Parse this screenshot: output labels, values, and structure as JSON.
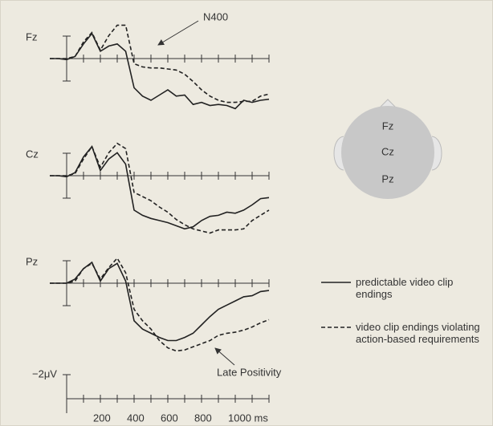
{
  "chart_data": [
    {
      "type": "line",
      "title": "Fz",
      "x": [
        -100,
        -50,
        0,
        50,
        100,
        150,
        200,
        250,
        300,
        350,
        400,
        450,
        500,
        550,
        600,
        650,
        700,
        750,
        800,
        850,
        900,
        950,
        1000,
        1050,
        1100,
        1150,
        1200
      ],
      "xlim": [
        -100,
        1200
      ],
      "ylim": [
        5.5,
        -3.5
      ],
      "series": [
        {
          "style": "solid",
          "color": "#222222",
          "values": [
            0,
            0,
            0.1,
            -0.2,
            -1.4,
            -2.4,
            -0.7,
            -1.2,
            -1.4,
            -0.7,
            2.8,
            3.6,
            4.0,
            3.5,
            3.0,
            3.6,
            3.5,
            4.4,
            4.2,
            4.5,
            4.4,
            4.5,
            4.8,
            4.0,
            4.2,
            4.0,
            3.9
          ]
        },
        {
          "style": "dashed",
          "color": "#222222",
          "values": [
            0,
            0,
            0,
            -0.2,
            -1.6,
            -2.5,
            -0.8,
            -2.2,
            -3.2,
            -3.2,
            0.5,
            0.8,
            0.9,
            0.9,
            1.0,
            1.1,
            1.5,
            2.2,
            3.0,
            3.6,
            4.0,
            4.2,
            4.2,
            4.1,
            4.1,
            3.6,
            3.4
          ]
        }
      ]
    },
    {
      "type": "line",
      "title": "Cz",
      "x": [
        -100,
        -50,
        0,
        50,
        100,
        150,
        200,
        250,
        300,
        350,
        400,
        450,
        500,
        550,
        600,
        650,
        700,
        750,
        800,
        850,
        900,
        950,
        1000,
        1050,
        1100,
        1150,
        1200
      ],
      "xlim": [
        -100,
        1200
      ],
      "ylim": [
        5.5,
        -3.5
      ],
      "series": [
        {
          "style": "solid",
          "color": "#222222",
          "values": [
            0,
            0,
            0.1,
            -0.3,
            -1.8,
            -2.8,
            -0.5,
            -1.6,
            -2.2,
            -1.1,
            3.3,
            3.8,
            4.1,
            4.3,
            4.5,
            4.8,
            5.1,
            4.9,
            4.3,
            3.9,
            3.8,
            3.5,
            3.6,
            3.3,
            2.8,
            2.2,
            2.1
          ]
        },
        {
          "style": "dashed",
          "color": "#222222",
          "values": [
            0,
            0,
            0,
            -0.2,
            -1.6,
            -2.8,
            -0.8,
            -2.2,
            -3.1,
            -2.6,
            1.6,
            2.0,
            2.4,
            3.0,
            3.5,
            4.2,
            4.7,
            5.1,
            5.3,
            5.5,
            5.2,
            5.2,
            5.2,
            5.1,
            4.3,
            3.8,
            3.3
          ]
        }
      ]
    },
    {
      "type": "line",
      "title": "Pz",
      "x": [
        -100,
        -50,
        0,
        50,
        100,
        150,
        200,
        250,
        300,
        350,
        400,
        450,
        500,
        550,
        600,
        650,
        700,
        750,
        800,
        850,
        900,
        950,
        1000,
        1050,
        1100,
        1150,
        1200
      ],
      "xlim": [
        -100,
        1200
      ],
      "ylim": [
        7,
        -3
      ],
      "series": [
        {
          "style": "solid",
          "color": "#222222",
          "values": [
            0,
            0,
            0,
            -0.4,
            -1.4,
            -2.0,
            -0.2,
            -1.4,
            -1.9,
            -0.2,
            3.6,
            4.4,
            4.8,
            5.2,
            5.5,
            5.5,
            5.2,
            4.8,
            4.0,
            3.2,
            2.5,
            2.1,
            1.7,
            1.3,
            1.2,
            0.8,
            0.7
          ]
        },
        {
          "style": "dashed",
          "color": "#222222",
          "values": [
            0,
            0,
            0,
            -0.2,
            -1.4,
            -1.9,
            -0.4,
            -1.5,
            -2.4,
            -1.0,
            2.5,
            3.6,
            4.4,
            5.5,
            6.2,
            6.5,
            6.4,
            6.1,
            5.8,
            5.5,
            5.0,
            4.8,
            4.7,
            4.5,
            4.2,
            3.8,
            3.5
          ]
        }
      ]
    }
  ],
  "axis": {
    "xlim": [
      -100,
      1200
    ],
    "xticks": [
      200,
      400,
      600,
      800,
      {
        "value": 1000,
        "label": "1000 ms"
      }
    ],
    "minor_ticks": [
      100,
      300,
      500,
      700,
      900,
      1100,
      1200
    ],
    "scale_label": "−2μV"
  },
  "annotations": {
    "n400": "N400",
    "late_positivity": "Late Positivity"
  },
  "legend": [
    {
      "name": "predictable video clip endings",
      "style": "solid"
    },
    {
      "name": "video clip endings violating action-based requirements",
      "style": "dashed"
    }
  ]
}
